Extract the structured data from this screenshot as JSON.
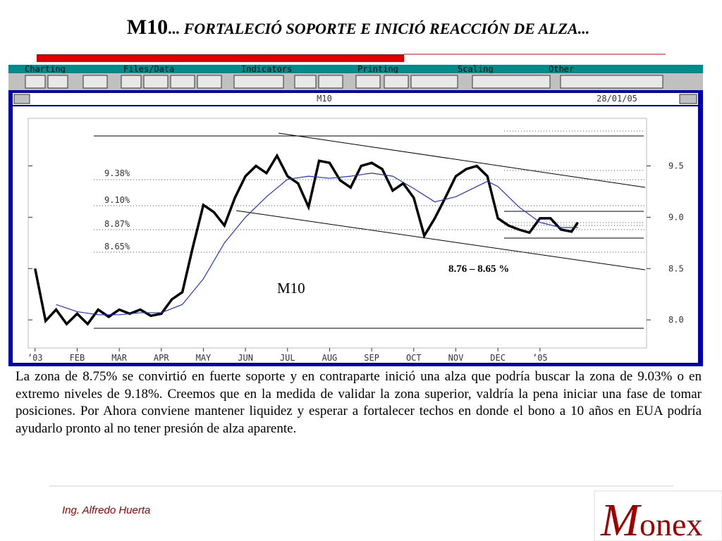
{
  "slide": {
    "title_main": "M10",
    "title_dots": "...",
    "title_rest": "FORTALECIÓ SOPORTE E INICIÓ REACCIÓN DE ALZA...",
    "body": "La zona de 8.75% se convirtió en fuerte soporte y en contraparte inició una alza que podría buscar la zona de 9.03% o en extremo niveles de 9.18%. Creemos que en la medida de validar la zona superior, valdría la pena iniciar una fase de tomar posiciones. Por Ahora conviene mantener liquidez y esperar a fortalecer techos en donde el bono a 10 años en EUA podría ayudarlo pronto al no tener presión de alza aparente.",
    "author": "Ing. Alfredo Huerta",
    "logo_m": "M",
    "logo_rest": "onex"
  },
  "app": {
    "menu": [
      "Charting",
      "Files/Data",
      "Indicators",
      "Printing",
      "Scaling",
      "Other"
    ],
    "window_title": "M10",
    "window_date": "28/01/05"
  },
  "chart_data": {
    "type": "line",
    "annotations": [
      "9.38%",
      "9.10%",
      "8.87%",
      "8.65%",
      "8.76 – 8.65 %",
      "M10"
    ],
    "xlim": [
      -0.13,
      14.5
    ],
    "xticks": [
      {
        "value": 0,
        "label": "’03"
      },
      {
        "value": 1,
        "label": "FEB"
      },
      {
        "value": 2,
        "label": "MAR"
      },
      {
        "value": 3,
        "label": "APR"
      },
      {
        "value": 4,
        "label": "MAY"
      },
      {
        "value": 5,
        "label": "JUN"
      },
      {
        "value": 6,
        "label": "JUL"
      },
      {
        "value": 7,
        "label": "AUG"
      },
      {
        "value": 8,
        "label": "SEP"
      },
      {
        "value": 9,
        "label": "OCT"
      },
      {
        "value": 10,
        "label": "NOV"
      },
      {
        "value": 11,
        "label": "DEC"
      },
      {
        "value": 12,
        "label": "’05"
      }
    ],
    "ylim": [
      7.74,
      9.95
    ],
    "yticks": [
      {
        "value": 8,
        "label": "8.0"
      },
      8.5,
      {
        "value": 9,
        "label": "9.0"
      },
      9.5
    ],
    "series": [
      {
        "color": "#000000",
        "x": [
          0,
          0.25,
          0.5,
          0.75,
          1,
          1.25,
          1.5,
          1.75,
          2,
          2.25,
          2.5,
          2.75,
          3,
          3.25,
          3.5,
          3.75,
          4,
          4.25,
          4.5,
          4.75,
          5,
          5.25,
          5.5,
          5.75,
          6,
          6.25,
          6.5,
          6.75,
          7,
          7.25,
          7.5,
          7.75,
          8,
          8.25,
          8.5,
          8.75,
          9,
          9.25,
          9.5,
          9.75,
          10,
          10.25,
          10.5,
          10.75,
          11,
          11.25,
          11.5,
          11.75,
          12,
          12.25,
          12.5,
          12.75,
          12.9
        ],
        "values": [
          8.5,
          7.99,
          8.1,
          7.96,
          8.06,
          7.96,
          8.1,
          8.03,
          8.1,
          8.06,
          8.1,
          8.04,
          8.06,
          8.2,
          8.27,
          8.71,
          9.12,
          9.05,
          8.92,
          9.19,
          9.4,
          9.5,
          9.43,
          9.6,
          9.4,
          9.33,
          9.1,
          9.55,
          9.53,
          9.36,
          9.29,
          9.5,
          9.53,
          9.47,
          9.26,
          9.33,
          9.19,
          8.82,
          8.99,
          9.19,
          9.4,
          9.47,
          9.5,
          9.4,
          8.99,
          8.92,
          8.88,
          8.85,
          8.99,
          8.99,
          8.88,
          8.86,
          8.95
        ]
      },
      {
        "color": "#2233cc",
        "x": [
          0.5,
          1,
          1.5,
          2,
          2.5,
          3,
          3.5,
          4,
          4.5,
          5,
          5.5,
          6,
          6.5,
          7,
          7.5,
          8,
          8.5,
          9,
          9.5,
          10,
          10.5,
          10.75,
          11,
          11.5,
          12,
          12.5,
          12.9
        ],
        "values": [
          8.15,
          8.08,
          8.05,
          8.05,
          8.07,
          8.07,
          8.15,
          8.4,
          8.75,
          9.0,
          9.2,
          9.37,
          9.4,
          9.38,
          9.4,
          9.43,
          9.4,
          9.28,
          9.15,
          9.2,
          9.3,
          9.35,
          9.3,
          9.1,
          8.95,
          8.9,
          8.9
        ]
      }
    ]
  }
}
